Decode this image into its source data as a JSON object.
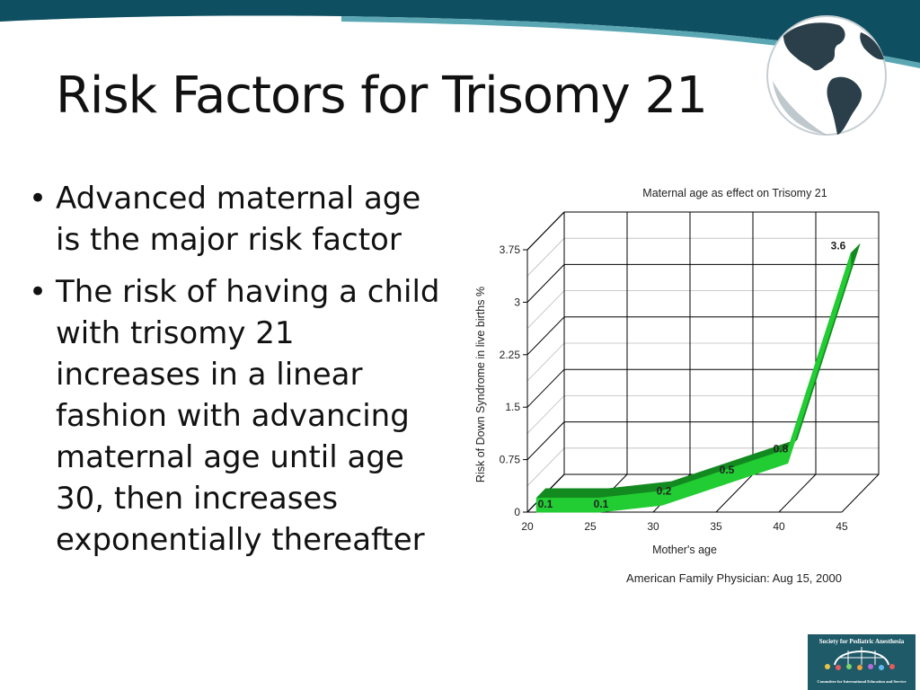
{
  "slide": {
    "title": "Risk Factors for Trisomy 21",
    "bullets": [
      "Advanced maternal age is the major risk factor",
      "The risk of having a child with trisomy 21 increases in a linear fashion with advancing maternal age until age 30, then increases exponentially thereafter"
    ],
    "bullet_glyph": "•"
  },
  "colors": {
    "header_band": "#0e4f61",
    "accent_ribbon": "#5aa7b3",
    "line_face": "#22cc33",
    "line_side": "#138a20",
    "logo_bg": "#1f5a68"
  },
  "icons": [
    "globe-icon",
    "society-logo"
  ],
  "logo": {
    "line1": "Society for Pediatric Anesthesia",
    "line2": "Committee for International Education and Service"
  },
  "chart_data": {
    "type": "line",
    "style": "3d",
    "title": "Maternal age as effect on Trisomy 21",
    "xlabel": "Mother's age",
    "ylabel": "Risk of Down Syndrome in live births %",
    "categories": [
      "20",
      "25",
      "30",
      "35",
      "40",
      "45"
    ],
    "series": [
      {
        "values": [
          0.1,
          0.1,
          0.2,
          0.5,
          0.8,
          3.6
        ]
      }
    ],
    "data_labels": [
      "0.1",
      "0.1",
      "0.2",
      "0.5",
      "0.8",
      "3.6"
    ],
    "yticks": [
      "0",
      "0.75",
      "1.5",
      "2.25",
      "3",
      "3.75"
    ],
    "ylim": [
      0,
      3.75
    ],
    "grid": true,
    "source": "American Family Physician: Aug 15, 2000"
  }
}
